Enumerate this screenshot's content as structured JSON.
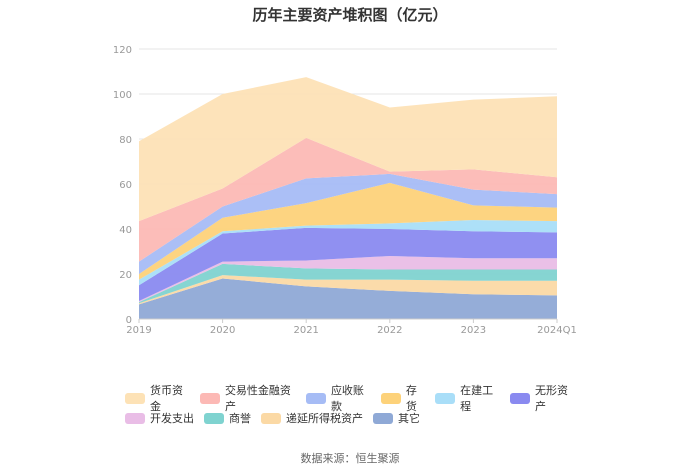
{
  "chart_data": {
    "type": "area",
    "stacked": true,
    "title": "历年主要资产堆积图（亿元）",
    "categories": [
      "2019",
      "2020",
      "2021",
      "2022",
      "2023",
      "2024Q1"
    ],
    "ylim": [
      0,
      120
    ],
    "yticks": [
      0,
      20,
      40,
      60,
      80,
      100,
      120
    ],
    "grid": true,
    "legend_position": "bottom",
    "series": [
      {
        "name": "其它",
        "color": "#8fa9d6",
        "values": [
          6.5,
          18,
          14.5,
          12.5,
          11,
          10.5
        ]
      },
      {
        "name": "递延所得税资产",
        "color": "#fbd9a5",
        "values": [
          0.5,
          1.5,
          3,
          5,
          6,
          6.5
        ]
      },
      {
        "name": "商誉",
        "color": "#7fd3d0",
        "values": [
          0.5,
          5,
          5,
          4.5,
          5,
          5
        ]
      },
      {
        "name": "开发支出",
        "color": "#e9bde6",
        "values": [
          0.5,
          1,
          3.5,
          6,
          5,
          5
        ]
      },
      {
        "name": "无形资产",
        "color": "#8a8af0",
        "values": [
          7,
          12.5,
          14.5,
          12,
          12,
          11.5
        ]
      },
      {
        "name": "在建工程",
        "color": "#a9def8",
        "values": [
          2.5,
          1,
          1,
          2.5,
          5,
          5
        ]
      },
      {
        "name": "存货",
        "color": "#fdd27a",
        "values": [
          2.5,
          6,
          10,
          18,
          6.5,
          6
        ]
      },
      {
        "name": "应收账款",
        "color": "#a6bcf5",
        "values": [
          5.5,
          5,
          11,
          4,
          7,
          6
        ]
      },
      {
        "name": "交易性金融资产",
        "color": "#fcb9b5",
        "values": [
          18,
          8,
          18,
          1,
          9,
          7.5
        ]
      },
      {
        "name": "货币资金",
        "color": "#fde2b6",
        "values": [
          35.5,
          42,
          27,
          28.5,
          31,
          36
        ]
      }
    ]
  },
  "legend": {
    "row1": [
      "货币资金",
      "交易性金融资产",
      "应收账款",
      "存货",
      "在建工程",
      "无形资产"
    ],
    "row2": [
      "开发支出",
      "商誉",
      "递延所得税资产",
      "其它"
    ]
  },
  "source": "数据来源：恒生聚源"
}
